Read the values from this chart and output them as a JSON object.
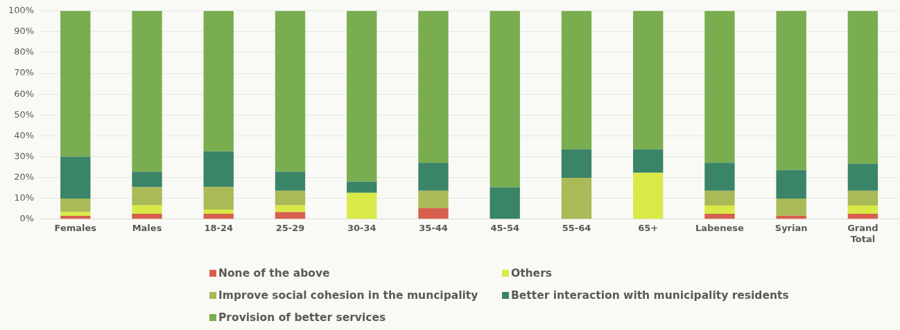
{
  "chart_data": {
    "type": "bar",
    "stacked": true,
    "categories": [
      "Females",
      "Males",
      "18-24",
      "25-29",
      "30-34",
      "35-44",
      "45-54",
      "55-64",
      "65+",
      "Labenese",
      "Syrian",
      "Grand Total"
    ],
    "series": [
      {
        "name": "None of the above",
        "color": "#d6604d",
        "values": [
          1.6,
          2.6,
          2.6,
          3.4,
          0,
          5.3,
          0,
          0,
          0,
          2.6,
          1.7,
          2.6
        ]
      },
      {
        "name": "Others",
        "color": "#d9ea48",
        "values": [
          1.8,
          4.1,
          2.0,
          3.3,
          12.6,
          0,
          0,
          0,
          22.3,
          4.0,
          0,
          4.0
        ]
      },
      {
        "name": "Improve social cohesion in the muncipality",
        "color": "#a9ba56",
        "values": [
          6.5,
          8.7,
          10.9,
          6.9,
          0,
          8.3,
          0,
          19.9,
          0,
          7.0,
          8.2,
          7.0
        ]
      },
      {
        "name": "Better interaction with municipality residents",
        "color": "#3a8468",
        "values": [
          20.1,
          7.4,
          17.1,
          9.2,
          5.4,
          13.5,
          15.3,
          13.7,
          11.3,
          13.5,
          13.7,
          13.0
        ]
      },
      {
        "name": "Provision of better services",
        "color": "#7aad4f",
        "values": [
          70.0,
          77.2,
          67.4,
          77.2,
          82.0,
          72.9,
          84.7,
          66.4,
          66.4,
          72.9,
          76.4,
          73.4
        ]
      }
    ],
    "ylim": [
      0,
      100
    ],
    "yticks": [
      {
        "value": 0,
        "label": "0%"
      },
      {
        "value": 10,
        "label": "10%"
      },
      {
        "value": 20,
        "label": "20%"
      },
      {
        "value": 30,
        "label": "30%"
      },
      {
        "value": 40,
        "label": "40%"
      },
      {
        "value": 50,
        "label": "50%"
      },
      {
        "value": 60,
        "label": "60%"
      },
      {
        "value": 70,
        "label": "70%"
      },
      {
        "value": 80,
        "label": "80%"
      },
      {
        "value": 90,
        "label": "90%"
      },
      {
        "value": 100,
        "label": "100%"
      }
    ],
    "grid": "y",
    "legend": "bottom"
  }
}
